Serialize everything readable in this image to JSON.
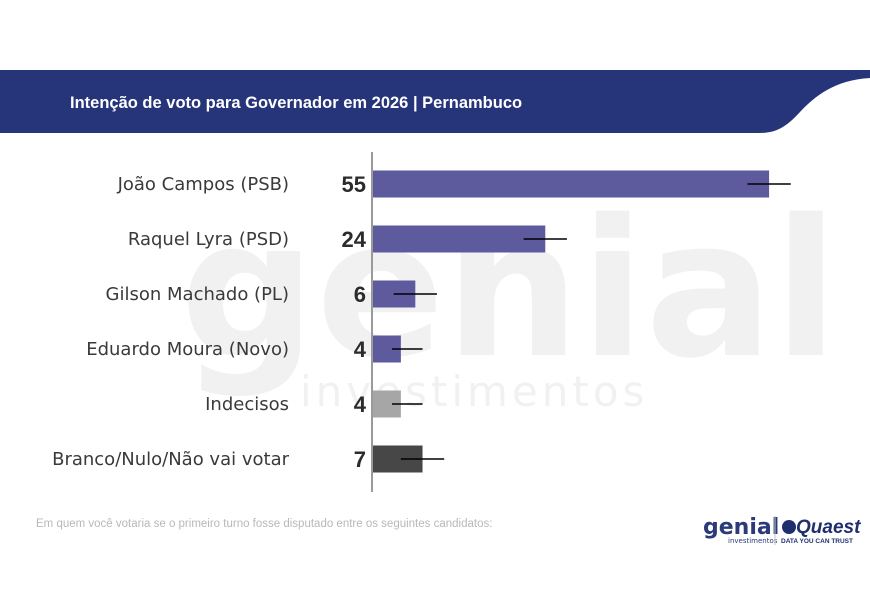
{
  "header": {
    "title": "Intenção de voto para Governador em 2026 | Pernambuco"
  },
  "watermark": {
    "main": "genial",
    "sub": "investimentos"
  },
  "footnote": "Em quem você votaria se o primeiro turno fosse disputado entre os seguintes candidatos:",
  "logos": {
    "genial": "genial",
    "genial_sub": "investimentos",
    "quaest": "Quaest",
    "quaest_sub": "DATA YOU CAN TRUST"
  },
  "colors": {
    "banner": "#26347a",
    "candidate_bar": "#5e5a9e",
    "undecided_bar": "#a6a6a6",
    "blank_bar": "#474747",
    "axis": "#9a9a9a",
    "error_bar": "#000000"
  },
  "chart_data": {
    "type": "bar",
    "orientation": "horizontal",
    "title": "Intenção de voto para Governador em 2026 | Pernambuco",
    "categories": [
      "João Campos (PSB)",
      "Raquel Lyra (PSD)",
      "Gilson Machado (PL)",
      "Eduardo Moura (Novo)",
      "Indecisos",
      "Branco/Nulo/Não vai votar"
    ],
    "values": [
      55,
      24,
      6,
      4,
      4,
      7
    ],
    "value_labels": [
      "55",
      "24",
      "6",
      "4",
      "4",
      "7"
    ],
    "error_margin": 3,
    "bar_colors": [
      "#5e5a9e",
      "#5e5a9e",
      "#5e5a9e",
      "#5e5a9e",
      "#a6a6a6",
      "#474747"
    ],
    "xlim": [
      0,
      60
    ],
    "xlabel": "",
    "ylabel": "",
    "grid": false
  }
}
